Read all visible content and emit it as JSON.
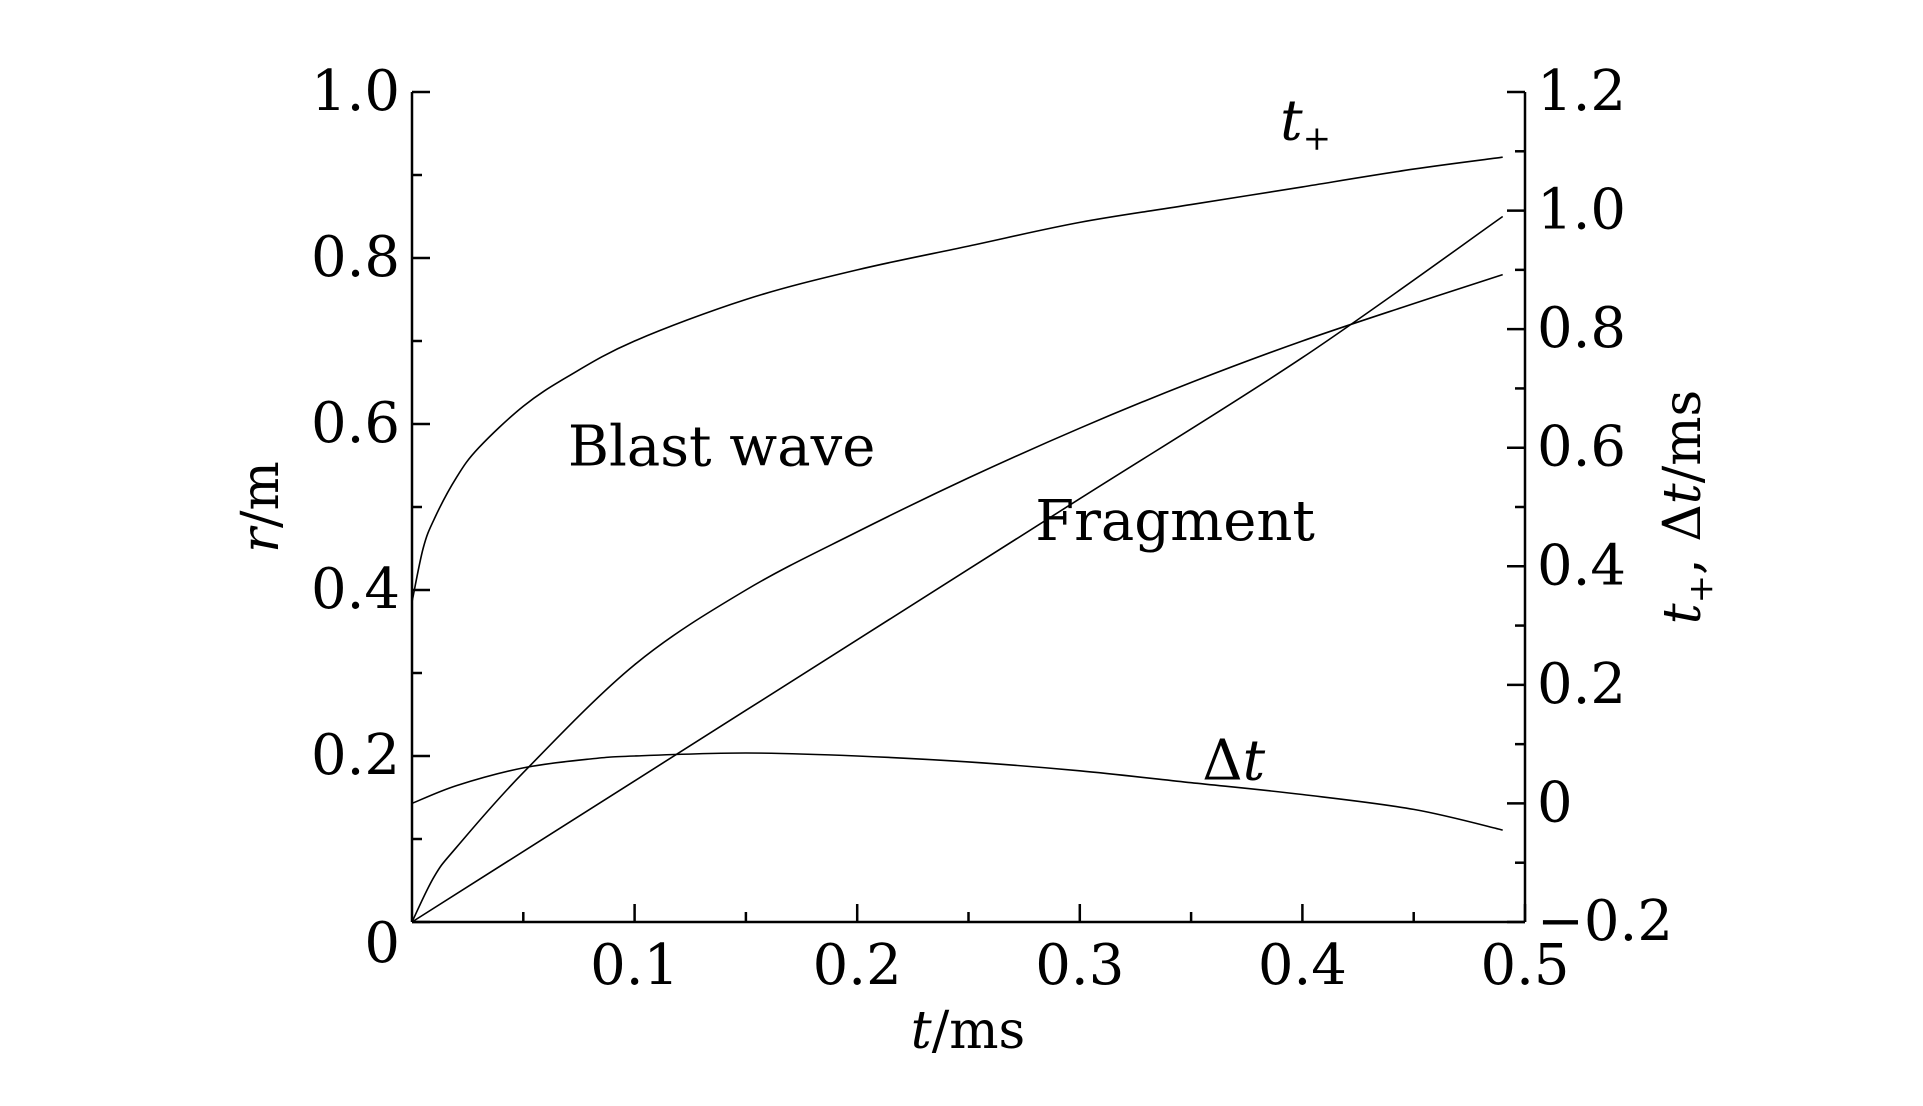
{
  "chart_data": {
    "type": "line",
    "x_axis": {
      "label_var": "t",
      "label_unit": "/ms",
      "range": [
        0,
        0.5
      ],
      "ticks": [
        {
          "value": 0.1,
          "label": "0.1"
        },
        {
          "value": 0.2,
          "label": "0.2"
        },
        {
          "value": 0.3,
          "label": "0.3"
        },
        {
          "value": 0.4,
          "label": "0.4"
        },
        {
          "value": 0.5,
          "label": "0.5"
        }
      ]
    },
    "y_left": {
      "label_var": "r",
      "label_unit": "/m",
      "range": [
        0,
        1.0
      ],
      "ticks": [
        {
          "value": 0,
          "label": "0"
        },
        {
          "value": 0.2,
          "label": "0.2"
        },
        {
          "value": 0.4,
          "label": "0.4"
        },
        {
          "value": 0.6,
          "label": "0.6"
        },
        {
          "value": 0.8,
          "label": "0.8"
        },
        {
          "value": 1.0,
          "label": "1.0"
        }
      ]
    },
    "y_right": {
      "label_var1": "t",
      "label_sub": "+",
      "label_sep": ", Δ",
      "label_var2": "t",
      "label_unit": "/ms",
      "range": [
        -0.2,
        1.2
      ],
      "ticks": [
        {
          "value": -0.2,
          "label": "−0.2"
        },
        {
          "value": 0,
          "label": "0"
        },
        {
          "value": 0.2,
          "label": "0.2"
        },
        {
          "value": 0.4,
          "label": "0.4"
        },
        {
          "value": 0.6,
          "label": "0.6"
        },
        {
          "value": 0.8,
          "label": "0.8"
        },
        {
          "value": 1.0,
          "label": "1.0"
        },
        {
          "value": 1.2,
          "label": "1.2"
        }
      ]
    },
    "series": [
      {
        "name": "Blast wave",
        "axis": "left",
        "x": [
          0,
          0.01,
          0.02,
          0.05,
          0.1,
          0.15,
          0.2,
          0.25,
          0.3,
          0.35,
          0.4,
          0.45,
          0.49
        ],
        "y": [
          0,
          0.055,
          0.09,
          0.18,
          0.31,
          0.4,
          0.47,
          0.535,
          0.595,
          0.65,
          0.7,
          0.745,
          0.78
        ]
      },
      {
        "name": "Fragment",
        "axis": "left",
        "x": [
          0,
          0.1,
          0.2,
          0.3,
          0.4,
          0.49
        ],
        "y": [
          0,
          0.17,
          0.34,
          0.51,
          0.68,
          0.85
        ]
      },
      {
        "name": "t+",
        "axis": "right",
        "x": [
          0,
          0.005,
          0.01,
          0.02,
          0.03,
          0.05,
          0.07,
          0.1,
          0.15,
          0.2,
          0.25,
          0.3,
          0.35,
          0.4,
          0.45,
          0.49
        ],
        "y": [
          0.34,
          0.43,
          0.48,
          0.55,
          0.6,
          0.67,
          0.72,
          0.78,
          0.85,
          0.9,
          0.94,
          0.98,
          1.01,
          1.04,
          1.07,
          1.09
        ]
      },
      {
        "name": "Δt",
        "axis": "right",
        "x": [
          0,
          0.02,
          0.05,
          0.08,
          0.1,
          0.15,
          0.2,
          0.25,
          0.3,
          0.35,
          0.4,
          0.45,
          0.49
        ],
        "y": [
          0,
          0.03,
          0.06,
          0.075,
          0.08,
          0.085,
          0.08,
          0.07,
          0.055,
          0.035,
          0.015,
          -0.01,
          -0.045
        ]
      }
    ],
    "annotations": [
      {
        "text": "Blast wave",
        "x": 0.07,
        "y_axis": "left",
        "y": 0.55
      },
      {
        "text": "Fragment",
        "x": 0.28,
        "y_axis": "left",
        "y": 0.46
      },
      {
        "text_var": "t",
        "text_sub": "+",
        "x": 0.39,
        "y_axis": "right",
        "y": 1.12
      },
      {
        "text_prefix": "Δ",
        "text_var": "t",
        "x": 0.355,
        "y_axis": "right",
        "y": 0.04
      }
    ]
  }
}
